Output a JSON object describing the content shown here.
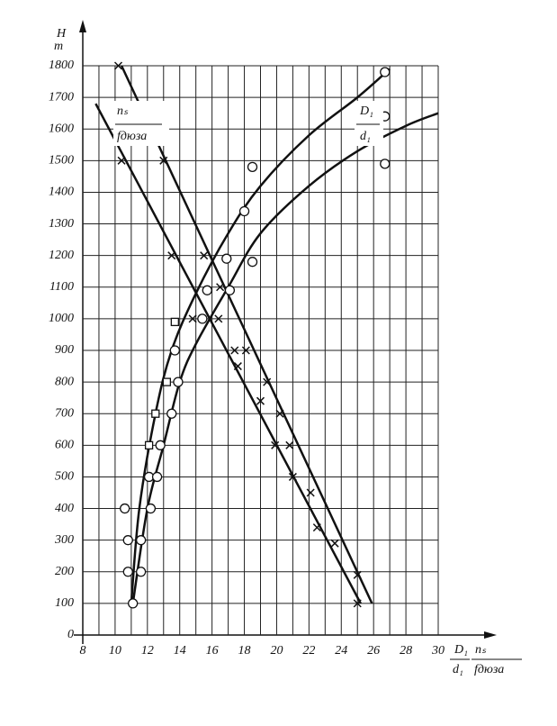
{
  "chart_data": {
    "type": "scatter",
    "ylabel": {
      "symbol": "H",
      "unit": "m"
    },
    "xlabel": {
      "left_num": "D₁",
      "left_den": "d₁",
      "right_num": "nₛ",
      "right_den": "fдюза"
    },
    "annotations": {
      "lines": {
        "num": "nₛ",
        "den": "fдюза"
      },
      "curves": {
        "num": "D₁",
        "den": "d₁"
      }
    },
    "xlim": [
      8,
      30
    ],
    "xticks": [
      8,
      10,
      12,
      14,
      16,
      18,
      20,
      22,
      24,
      26,
      28,
      30
    ],
    "ylim": [
      0,
      1800
    ],
    "yticks": [
      0,
      100,
      200,
      300,
      400,
      500,
      600,
      700,
      800,
      900,
      1000,
      1100,
      1200,
      1300,
      1400,
      1500,
      1600,
      1700,
      1800
    ],
    "grid": true,
    "series": [
      {
        "mode": "line",
        "color": "#111111",
        "x": [
          10.4,
          25.9
        ],
        "values": [
          1800,
          100
        ]
      },
      {
        "mode": "line",
        "color": "#111111",
        "x": [
          8.8,
          25.2
        ],
        "values": [
          1680,
          100
        ]
      },
      {
        "mode": "line",
        "color": "#111111",
        "x": [
          11,
          11.5,
          12.5,
          13.5,
          15,
          17,
          19,
          22,
          25,
          27
        ],
        "values": [
          100,
          400,
          700,
          900,
          1080,
          1270,
          1420,
          1580,
          1700,
          1790
        ]
      },
      {
        "mode": "line",
        "color": "#111111",
        "x": [
          11.1,
          12,
          13,
          14,
          15,
          17,
          19,
          22,
          25,
          28,
          30
        ],
        "values": [
          100,
          400,
          600,
          800,
          920,
          1100,
          1270,
          1420,
          1530,
          1610,
          1650
        ]
      },
      {
        "mode": "markers",
        "marker": "x",
        "color": "#111111",
        "x": [
          10.2,
          10.4,
          13,
          13.5,
          15.5,
          14.8,
          16.4,
          16.5,
          17.4,
          18.1,
          17.6,
          19.4,
          19,
          20.2,
          19.9,
          20.8,
          21,
          22.1,
          22.5,
          23.6,
          25,
          25
        ],
        "values": [
          1800,
          1500,
          1500,
          1200,
          1200,
          1000,
          1000,
          1100,
          900,
          900,
          850,
          800,
          740,
          700,
          600,
          600,
          500,
          450,
          340,
          290,
          190,
          100
        ]
      },
      {
        "mode": "markers",
        "marker": "circle",
        "color": "#111111",
        "x": [
          10.6,
          10.8,
          10.8,
          11.1,
          11.6,
          11.6,
          12.2,
          12.1,
          12.6,
          12.8,
          13.5,
          13.9,
          13.7,
          15.4,
          15.7,
          17.1,
          16.9,
          18.5,
          18,
          18.5,
          26.7,
          26.7,
          26.7
        ],
        "values": [
          400,
          300,
          200,
          100,
          300,
          200,
          400,
          500,
          500,
          600,
          700,
          800,
          900,
          1000,
          1090,
          1090,
          1190,
          1180,
          1340,
          1480,
          1780,
          1640,
          1490
        ]
      },
      {
        "mode": "markers",
        "marker": "square",
        "color": "#111111",
        "x": [
          13.7,
          13.2,
          12.5,
          12.1
        ],
        "values": [
          990,
          800,
          700,
          600
        ]
      }
    ]
  }
}
